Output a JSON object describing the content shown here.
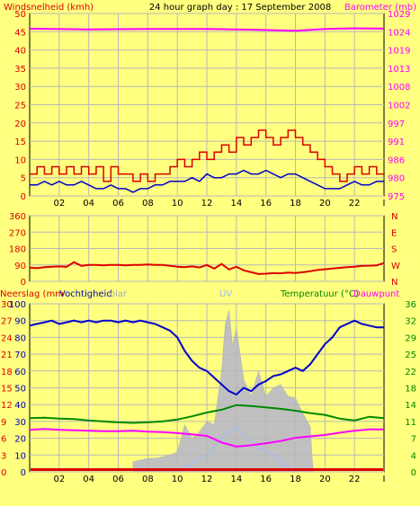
{
  "header": {
    "left_label": "Windsnelheid (kmh)",
    "title": "24 hour graph day : 17 September 2008",
    "right_label": "Barometer (mb)"
  },
  "colors": {
    "background": "#ffff80",
    "plot_bg": "#ffff80",
    "grid": "#b8b8b8",
    "wind_avg": "#0000cc",
    "wind_gust": "#dd0000",
    "barometer": "#ff00ff",
    "direction": "#dd0000",
    "humidity": "#0000cc",
    "temperature": "#008800",
    "dewpoint": "#ff00ff",
    "solar": "#c0c0c0",
    "uv": "#99bbff",
    "rain": "#dd0000",
    "left_axis_text": "#dd0000",
    "right_axis_text": "#ff00ff",
    "humidity_axis_text": "#0000aa",
    "temp_axis_text": "#008800"
  },
  "x_ticks": [
    "02",
    "04",
    "06",
    "08",
    "10",
    "12",
    "14",
    "16",
    "18",
    "20",
    "22",
    "I"
  ],
  "chart_data": [
    {
      "id": "wind-barometer",
      "type": "line",
      "x_unit": "hour",
      "xlim": [
        0,
        24
      ],
      "left_axis": {
        "label": "Windsnelheid (kmh)",
        "ylim": [
          0,
          50
        ],
        "ticks": [
          0,
          5,
          10,
          15,
          20,
          25,
          30,
          35,
          40,
          45,
          50
        ]
      },
      "right_axis": {
        "label": "Barometer (mb)",
        "ticks": [
          975,
          980,
          986,
          991,
          997,
          1002,
          1008,
          1013,
          1019,
          1024,
          1029
        ]
      },
      "series": [
        {
          "key": "gust",
          "style": "step",
          "x": [
            0,
            0.5,
            1,
            1.5,
            2,
            2.5,
            3,
            3.5,
            4,
            4.5,
            5,
            5.5,
            6,
            6.5,
            7,
            7.5,
            8,
            8.5,
            9,
            9.5,
            10,
            10.5,
            11,
            11.5,
            12,
            12.5,
            13,
            13.5,
            14,
            14.5,
            15,
            15.5,
            16,
            16.5,
            17,
            17.5,
            18,
            18.5,
            19,
            19.5,
            20,
            20.5,
            21,
            21.5,
            22,
            22.5,
            23,
            23.5
          ],
          "values": [
            6,
            8,
            6,
            8,
            6,
            8,
            6,
            8,
            6,
            8,
            4,
            8,
            6,
            6,
            4,
            6,
            4,
            6,
            6,
            8,
            10,
            8,
            10,
            12,
            10,
            12,
            14,
            12,
            16,
            14,
            16,
            18,
            16,
            14,
            16,
            18,
            16,
            14,
            12,
            10,
            8,
            6,
            4,
            6,
            8,
            6,
            8,
            6
          ]
        },
        {
          "key": "avg",
          "style": "line",
          "x": [
            0,
            0.5,
            1,
            1.5,
            2,
            2.5,
            3,
            3.5,
            4,
            4.5,
            5,
            5.5,
            6,
            6.5,
            7,
            7.5,
            8,
            8.5,
            9,
            9.5,
            10,
            10.5,
            11,
            11.5,
            12,
            12.5,
            13,
            13.5,
            14,
            14.5,
            15,
            15.5,
            16,
            16.5,
            17,
            17.5,
            18,
            18.5,
            19,
            19.5,
            20,
            20.5,
            21,
            21.5,
            22,
            22.5,
            23,
            23.5,
            24
          ],
          "values": [
            3,
            3,
            4,
            3,
            4,
            3,
            3,
            4,
            3,
            2,
            2,
            3,
            2,
            2,
            1,
            2,
            2,
            3,
            3,
            4,
            4,
            4,
            5,
            4,
            6,
            5,
            5,
            6,
            6,
            7,
            6,
            6,
            7,
            6,
            5,
            6,
            6,
            5,
            4,
            3,
            2,
            2,
            2,
            3,
            4,
            3,
            3,
            4,
            4
          ]
        },
        {
          "key": "barometer",
          "style": "line",
          "x": [
            0,
            4,
            8,
            12,
            14,
            16,
            18,
            20,
            22,
            24
          ],
          "values": [
            1024.5,
            1024.3,
            1024.4,
            1024.4,
            1024.3,
            1024.1,
            1023.9,
            1024.4,
            1024.6,
            1024.5
          ]
        }
      ]
    },
    {
      "id": "wind-direction",
      "type": "line",
      "xlim": [
        0,
        24
      ],
      "left_axis": {
        "ylim": [
          0,
          360
        ],
        "ticks": [
          0,
          90,
          180,
          270,
          360
        ]
      },
      "right_axis": {
        "labels": [
          "N",
          "W",
          "S",
          "E",
          "N"
        ]
      },
      "series": [
        {
          "key": "direction",
          "x": [
            0,
            0.5,
            1,
            1.5,
            2,
            2.5,
            3,
            3.5,
            4,
            4.5,
            5,
            5.5,
            6,
            6.5,
            7,
            7.5,
            8,
            8.5,
            9,
            9.5,
            10,
            10.5,
            11,
            11.5,
            12,
            12.5,
            13,
            13.5,
            14,
            14.5,
            15,
            15.5,
            16,
            16.5,
            17,
            17.5,
            18,
            18.5,
            19,
            19.5,
            20,
            20.5,
            21,
            21.5,
            22,
            22.5,
            23,
            23.5,
            24
          ],
          "values": [
            75,
            72,
            78,
            80,
            82,
            80,
            105,
            85,
            90,
            90,
            88,
            90,
            90,
            88,
            90,
            90,
            92,
            90,
            90,
            85,
            80,
            78,
            82,
            76,
            90,
            70,
            95,
            65,
            80,
            60,
            50,
            40,
            42,
            45,
            44,
            48,
            46,
            50,
            55,
            62,
            66,
            70,
            74,
            78,
            80,
            85,
            86,
            88,
            100
          ]
        }
      ]
    },
    {
      "id": "humidity-temperature",
      "type": "line",
      "xlim": [
        0,
        24
      ],
      "headers": {
        "rain": "Neerslag (mm",
        "humidity": "Vochtigheid",
        "solar": "olar",
        "uv": "UV",
        "temperature": "Temperatuur (°C)",
        "dewpoint": "Dauwpunt"
      },
      "left_axes": {
        "humidity_ticks": [
          0,
          10,
          20,
          30,
          40,
          50,
          60,
          70,
          80,
          90,
          100
        ],
        "rain_ticks": [
          0,
          3,
          6,
          9,
          12,
          15,
          18,
          21,
          24,
          27,
          30
        ]
      },
      "right_axis": {
        "ylim": [
          0,
          36
        ],
        "ticks": [
          0,
          4,
          7,
          11,
          14,
          18,
          22,
          25,
          29,
          32,
          36
        ]
      },
      "series": [
        {
          "key": "humidity",
          "x": [
            0,
            0.5,
            1,
            1.5,
            2,
            2.5,
            3,
            3.5,
            4,
            4.5,
            5,
            5.5,
            6,
            6.5,
            7,
            7.5,
            8,
            8.5,
            9,
            9.5,
            10,
            10.5,
            11,
            11.5,
            12,
            12.5,
            13,
            13.5,
            14,
            14.5,
            15,
            15.5,
            16,
            16.5,
            17,
            17.5,
            18,
            18.5,
            19,
            19.5,
            20,
            20.5,
            21,
            21.5,
            22,
            22.5,
            23,
            23.5,
            24
          ],
          "values": [
            87,
            88,
            89,
            90,
            88,
            89,
            90,
            89,
            90,
            89,
            90,
            90,
            89,
            90,
            89,
            90,
            89,
            88,
            86,
            84,
            80,
            72,
            66,
            62,
            60,
            56,
            52,
            48,
            46,
            50,
            48,
            52,
            54,
            57,
            58,
            60,
            62,
            60,
            64,
            70,
            76,
            80,
            86,
            88,
            90,
            88,
            87,
            86,
            86
          ]
        },
        {
          "key": "temperature",
          "x": [
            0,
            1,
            2,
            3,
            4,
            5,
            6,
            7,
            8,
            9,
            10,
            11,
            12,
            13,
            14,
            15,
            16,
            17,
            18,
            19,
            20,
            21,
            22,
            23,
            24
          ],
          "values": [
            11.5,
            11.6,
            11.4,
            11.3,
            11.0,
            10.8,
            10.6,
            10.5,
            10.6,
            10.8,
            11.2,
            11.9,
            12.7,
            13.3,
            14.3,
            14.1,
            13.8,
            13.5,
            13.1,
            12.6,
            12.2,
            11.4,
            11.0,
            11.8,
            11.5
          ]
        },
        {
          "key": "dewpoint",
          "x": [
            0,
            1,
            2,
            3,
            4,
            5,
            6,
            7,
            8,
            9,
            10,
            11,
            12,
            13,
            14,
            15,
            16,
            17,
            18,
            19,
            20,
            21,
            22,
            23,
            24
          ],
          "values": [
            9.0,
            9.2,
            9.0,
            8.9,
            8.8,
            8.7,
            8.7,
            8.8,
            8.6,
            8.5,
            8.3,
            8.0,
            7.7,
            6.3,
            5.4,
            5.7,
            6.1,
            6.6,
            7.3,
            7.6,
            7.9,
            8.4,
            8.8,
            9.1,
            9.1
          ]
        },
        {
          "key": "uv",
          "x": [
            10,
            10.5,
            11,
            11.5,
            12,
            12.5,
            13,
            13.5,
            14,
            14.5,
            15,
            15.5,
            16,
            16.5,
            17,
            17.5,
            18
          ],
          "values": [
            0,
            3,
            5,
            8,
            10,
            15,
            20,
            24,
            26,
            22,
            18,
            14,
            12,
            10,
            6,
            3,
            0
          ]
        }
      ],
      "solar": {
        "x": [
          7,
          7.5,
          8,
          8.5,
          9,
          9.5,
          10,
          10.5,
          11,
          11.5,
          12,
          12.5,
          13,
          13.25,
          13.5,
          13.75,
          14,
          14.5,
          15,
          15.5,
          16,
          16.5,
          17,
          17.5,
          18,
          18.5,
          19,
          19.2
        ],
        "values": [
          6,
          7,
          8,
          8,
          9,
          10,
          12,
          28,
          20,
          24,
          30,
          28,
          60,
          88,
          96,
          75,
          86,
          55,
          45,
          60,
          45,
          50,
          52,
          45,
          44,
          35,
          27,
          0
        ]
      },
      "rain": {
        "values": [
          0
        ]
      }
    }
  ]
}
